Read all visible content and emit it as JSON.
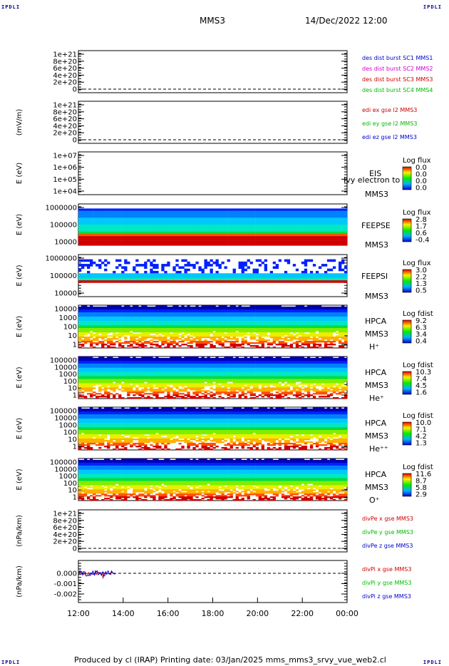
{
  "corners": {
    "tl": "IPDLI",
    "tr": "IPDLI",
    "bl": "IPDLI",
    "br": "IPDLI"
  },
  "header": {
    "mission": "MMS3",
    "datetime": "14/Dec/2022 12:00"
  },
  "footer": {
    "text": "Produced by cl (IRAP)   Printing date: 03/Jan/2025   mms_mms3_srvy_vue_web2.cl"
  },
  "colors": {
    "mms1": "#0000cc",
    "mms2": "#cc00cc",
    "mms3": "#cc0000",
    "mms4": "#00bb00",
    "x": "#cc0000",
    "y": "#00bb00",
    "z": "#0000cc"
  },
  "chart_data": [
    {
      "type": "line",
      "id": "des_dist",
      "ylim": [
        0,
        1e+21
      ],
      "yticks": [
        "1e+21",
        "8e+20",
        "6e+20",
        "4e+20",
        "2e+20",
        "0"
      ],
      "series": [
        {
          "name": "des dist burst SC1 MMS1"
        },
        {
          "name": "des dist burst SC2 MMS2"
        },
        {
          "name": "des dist burst SC3 MMS3"
        },
        {
          "name": "des dist burst SC4 MMS4"
        }
      ]
    },
    {
      "type": "line",
      "id": "edi",
      "ylabel": "(mV/m)",
      "yticks": [
        "1e+21",
        "8e+20",
        "6e+20",
        "4e+20",
        "2e+20",
        "0"
      ],
      "series": [
        {
          "name": "edi ex gse l2 MMS3"
        },
        {
          "name": "edi ey gse l2 MMS3"
        },
        {
          "name": "edi ez gse l2 MMS3"
        }
      ]
    },
    {
      "type": "heatmap",
      "id": "eis",
      "ylabel": "E (eV)",
      "yscale": "log",
      "yticks": [
        "1e+07",
        "1e+06",
        "1e+05",
        "1e+04"
      ],
      "labels": [
        "EIS",
        "MMS3"
      ],
      "overlay": "Ivy electron to",
      "colorbar": {
        "title": "Log flux",
        "ticks": [
          "0.0",
          "0.0",
          "0.0",
          "0.0"
        ]
      }
    },
    {
      "type": "heatmap",
      "id": "feepse",
      "ylabel": "E (eV)",
      "yscale": "log",
      "yticks": [
        "1000000",
        "100000",
        "10000"
      ],
      "labels": [
        "FEEPSE",
        "MMS3"
      ],
      "colorbar": {
        "title": "Log flux",
        "ticks": [
          "2.8",
          "1.7",
          "0.6",
          "-0.4"
        ]
      }
    },
    {
      "type": "heatmap",
      "id": "feepsi",
      "ylabel": "E (eV)",
      "yscale": "log",
      "yticks": [
        "1000000",
        "100000",
        "10000"
      ],
      "labels": [
        "FEEPSI",
        "MMS3"
      ],
      "colorbar": {
        "title": "Log flux",
        "ticks": [
          "3.0",
          "2.2",
          "1.3",
          "0.5"
        ]
      }
    },
    {
      "type": "heatmap",
      "id": "hpca_h",
      "ylabel": "E (eV)",
      "yscale": "log",
      "yticks": [
        "10000",
        "1000",
        "100",
        "10",
        "1"
      ],
      "labels": [
        "HPCA",
        "MMS3",
        "H⁺"
      ],
      "colorbar": {
        "title": "Log fdist",
        "ticks": [
          "9.2",
          "6.3",
          "3.4",
          "0.4"
        ]
      }
    },
    {
      "type": "heatmap",
      "id": "hpca_he",
      "ylabel": "E (eV)",
      "yscale": "log",
      "yticks": [
        "100000",
        "10000",
        "1000",
        "100",
        "10",
        "1"
      ],
      "labels": [
        "HPCA",
        "MMS3",
        "He⁺"
      ],
      "colorbar": {
        "title": "Log fdist",
        "ticks": [
          "10.3",
          "7.4",
          "4.5",
          "1.6"
        ]
      }
    },
    {
      "type": "heatmap",
      "id": "hpca_hepp",
      "ylabel": "E (eV)",
      "yscale": "log",
      "yticks": [
        "100000",
        "10000",
        "1000",
        "100",
        "10",
        "1"
      ],
      "labels": [
        "HPCA",
        "MMS3",
        "He⁺⁺"
      ],
      "colorbar": {
        "title": "Log fdist",
        "ticks": [
          "10.0",
          "7.1",
          "4.2",
          "1.3"
        ]
      }
    },
    {
      "type": "heatmap",
      "id": "hpca_o",
      "ylabel": "E (eV)",
      "yscale": "log",
      "yticks": [
        "100000",
        "10000",
        "1000",
        "100",
        "10",
        "1"
      ],
      "labels": [
        "HPCA",
        "MMS3",
        "O⁺"
      ],
      "colorbar": {
        "title": "Log fdist",
        "ticks": [
          "11.6",
          "8.7",
          "5.8",
          "2.9"
        ]
      }
    },
    {
      "type": "line",
      "id": "divpe",
      "ylabel": "(nPa/km)",
      "yticks": [
        "1e+21",
        "8e+20",
        "6e+20",
        "4e+20",
        "2e+20",
        "0"
      ],
      "series": [
        {
          "name": "divPe x gse MMS3"
        },
        {
          "name": "divPe y gse MMS3"
        },
        {
          "name": "divPe z gse MMS3"
        }
      ]
    },
    {
      "type": "line",
      "id": "divpi",
      "ylabel": "(nPa/km)",
      "ylim": [
        -0.0025,
        0.0005
      ],
      "yticks": [
        "0.000",
        "-0.001",
        "-0.002"
      ],
      "series": [
        {
          "name": "divPi x gse MMS3"
        },
        {
          "name": "divPi y gse MMS3"
        },
        {
          "name": "divPi z gse MMS3"
        }
      ],
      "x_active": [
        "12:00",
        "13:40"
      ]
    }
  ],
  "xaxis": {
    "ticks": [
      "12:00",
      "14:00",
      "16:00",
      "18:00",
      "20:00",
      "22:00",
      "00:00"
    ]
  }
}
